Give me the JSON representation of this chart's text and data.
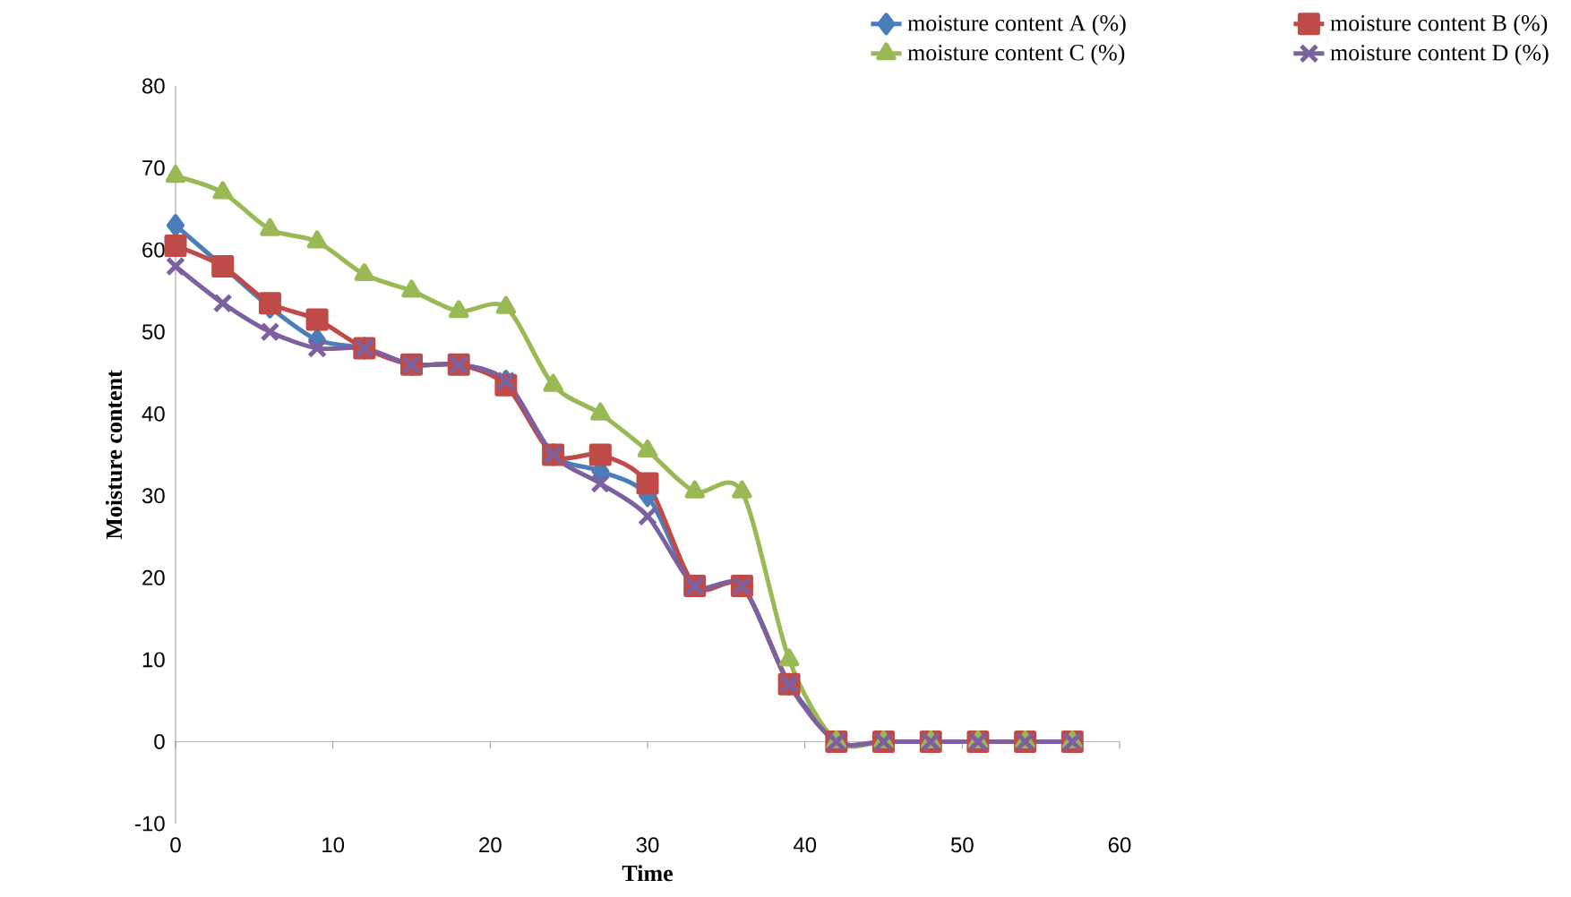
{
  "chart_data": {
    "type": "line",
    "xlabel": "Time",
    "ylabel": "Moisture content",
    "x": [
      0,
      3,
      6,
      9,
      12,
      15,
      18,
      21,
      24,
      27,
      30,
      33,
      36,
      39,
      42,
      45,
      48,
      51,
      54,
      57
    ],
    "series": [
      {
        "name": "moisture content A (%)",
        "color": "#4a7ebb",
        "marker": "diamond",
        "values": [
          63,
          58,
          53,
          49,
          48,
          46,
          46,
          44,
          35,
          33,
          30,
          19,
          19,
          7,
          0,
          null,
          null,
          null,
          null,
          null
        ]
      },
      {
        "name": "moisture content B (%)",
        "color": "#be4b48",
        "marker": "square",
        "values": [
          60.5,
          58,
          53.5,
          51.5,
          48,
          46,
          46,
          43.5,
          35,
          35,
          31.5,
          19,
          19,
          7,
          0,
          0,
          0,
          0,
          0,
          0
        ]
      },
      {
        "name": "moisture content C (%)",
        "color": "#98b954",
        "marker": "triangle",
        "values": [
          69,
          67,
          62.5,
          61,
          57,
          55,
          52.5,
          53,
          43.5,
          40,
          35.5,
          30.5,
          30.5,
          10,
          0,
          0,
          0,
          0,
          0,
          0
        ]
      },
      {
        "name": "moisture content D (%)",
        "color": "#7d60a0",
        "marker": "cross",
        "values": [
          58,
          53.5,
          50,
          48,
          48,
          46,
          46,
          44,
          35,
          31.5,
          27.5,
          19,
          19,
          7,
          0,
          0,
          0,
          0,
          0,
          0
        ]
      }
    ],
    "xlim": [
      0,
      60
    ],
    "xticks": [
      0,
      10,
      20,
      30,
      40,
      50,
      60
    ],
    "ylim": [
      -10,
      80
    ],
    "yticks": [
      -10,
      0,
      10,
      20,
      30,
      40,
      50,
      60,
      70,
      80
    ],
    "ref_lines": [
      {
        "axis": "y",
        "value": 0,
        "color": "#a0a0a0"
      }
    ],
    "grid": false,
    "legend": "top",
    "line_style": "solid"
  }
}
